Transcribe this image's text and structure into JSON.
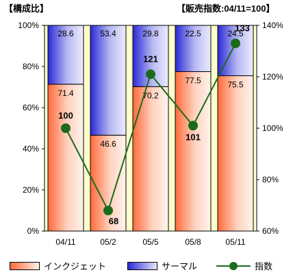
{
  "header": {
    "left": "【構成比】",
    "right": "【販売指数:04/11=100】"
  },
  "colors": {
    "inkjet_dark": "#ff6a3a",
    "inkjet_light": "#fff0e8",
    "thermal_dark": "#2a2ad6",
    "thermal_light": "#e6e6ff",
    "index_line": "#1c6b1c",
    "plot_bg": "#ffffcc"
  },
  "legend": {
    "inkjet": "インクジェット",
    "thermal": "サーマル",
    "index": "指数"
  },
  "chart_data": {
    "type": "bar",
    "stacked": true,
    "categories": [
      "04/11",
      "05/2",
      "05/5",
      "05/8",
      "05/11"
    ],
    "series": [
      {
        "name": "インクジェット",
        "values": [
          71.4,
          46.6,
          70.2,
          77.5,
          75.5
        ]
      },
      {
        "name": "サーマル",
        "values": [
          28.6,
          53.4,
          29.8,
          22.5,
          24.5
        ]
      }
    ],
    "line_series": {
      "name": "指数",
      "values": [
        100,
        68,
        121,
        101,
        133
      ],
      "axis": "right"
    },
    "left_axis": {
      "ylim": [
        0,
        100
      ],
      "ticks": [
        "0%",
        "20%",
        "40%",
        "60%",
        "80%",
        "100%"
      ]
    },
    "right_axis": {
      "ylim": [
        60,
        140
      ],
      "ticks": [
        "60%",
        "80%",
        "100%",
        "120%",
        "140%"
      ]
    },
    "grid": false,
    "legend_position": "bottom"
  }
}
